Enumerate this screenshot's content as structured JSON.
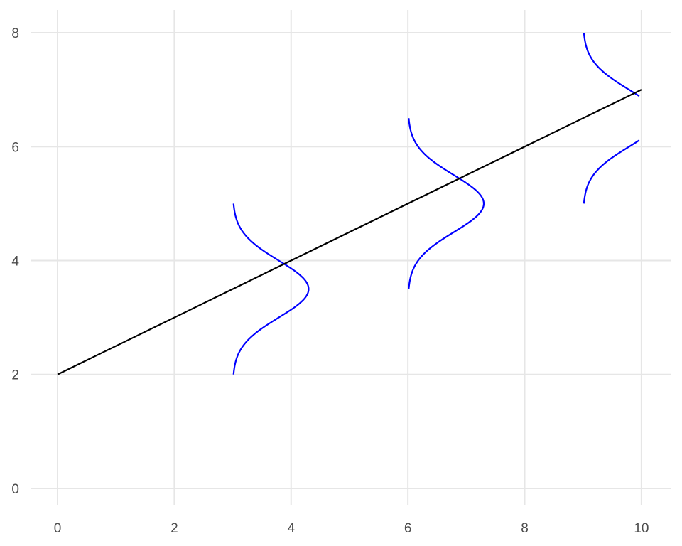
{
  "chart_data": {
    "type": "line",
    "title": "",
    "xlabel": "",
    "ylabel": "",
    "xlim": [
      -0.45,
      10.5
    ],
    "ylim": [
      -0.3,
      8.4
    ],
    "x_ticks": [
      0,
      2,
      4,
      6,
      8,
      10
    ],
    "y_ticks": [
      0,
      2,
      4,
      6,
      8
    ],
    "grid": true,
    "legend": "none",
    "colors": {
      "line": "#000000",
      "density": "#0000ff",
      "grid": "#e6e6e6",
      "tick_text": "#4d4d4d"
    },
    "line": {
      "intercept": 2,
      "slope": 0.5,
      "x_range": [
        0,
        10
      ]
    },
    "density_curves": [
      {
        "base_x": 3,
        "center_y": 3.5,
        "y_range": [
          2,
          5
        ],
        "peak_width": 1.3,
        "sd": 0.5
      },
      {
        "base_x": 6,
        "center_y": 5.0,
        "y_range": [
          3.5,
          6.5
        ],
        "peak_width": 1.3,
        "sd": 0.5
      },
      {
        "base_x": 9,
        "center_y": 6.5,
        "y_range": [
          5,
          8
        ],
        "peak_width": 1.3,
        "sd": 0.5,
        "clip_x_max": 9.97
      }
    ]
  }
}
